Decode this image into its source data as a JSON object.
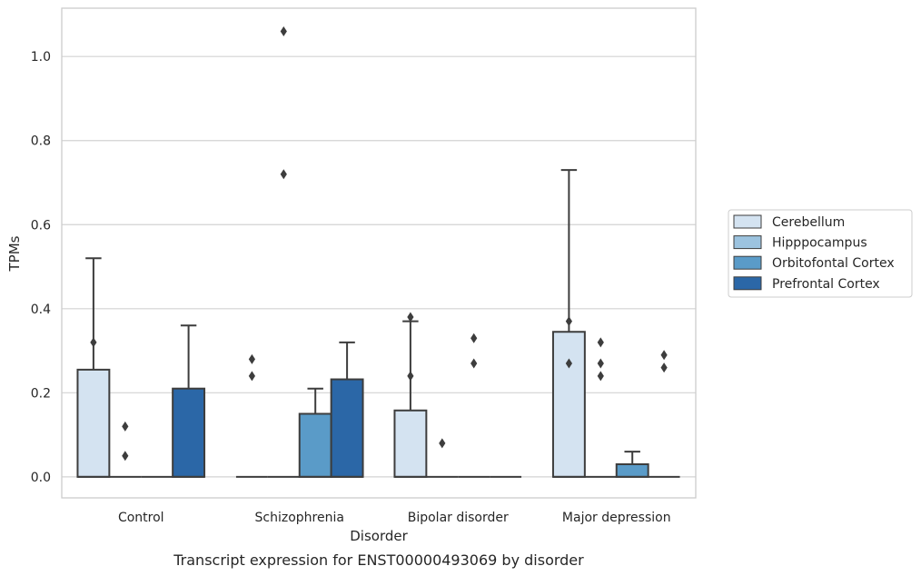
{
  "chart_data": {
    "type": "box",
    "title": "",
    "caption": "Transcript expression for ENST00000493069 by disorder",
    "xlabel": "Disorder",
    "ylabel": "TPMs",
    "ylim": [
      -0.05,
      1.115
    ],
    "yticks": [
      0.0,
      0.2,
      0.4,
      0.6,
      0.8,
      1.0
    ],
    "ytick_labels": [
      "0.0",
      "0.2",
      "0.4",
      "0.6",
      "0.8",
      "1.0"
    ],
    "grid": "horizontal",
    "legend_position": "right",
    "categories": [
      "Control",
      "Schizophrenia",
      "Bipolar disorder",
      "Major depression"
    ],
    "series": [
      {
        "name": "Cerebellum",
        "color": "#d4e3f1",
        "boxes": [
          {
            "q1": 0.0,
            "median": 0.0,
            "q3": 0.255,
            "whisker_low": 0.0,
            "whisker_high": 0.52,
            "outliers": [
              0.32
            ]
          },
          {
            "q1": 0.0,
            "median": 0.0,
            "q3": 0.0,
            "whisker_low": 0.0,
            "whisker_high": 0.0,
            "outliers": [
              0.28,
              0.24
            ]
          },
          {
            "q1": 0.0,
            "median": 0.0,
            "q3": 0.158,
            "whisker_low": 0.0,
            "whisker_high": 0.37,
            "outliers": [
              0.38,
              0.24
            ]
          },
          {
            "q1": 0.0,
            "median": 0.0,
            "q3": 0.345,
            "whisker_low": 0.0,
            "whisker_high": 0.73,
            "outliers": [
              0.37,
              0.27
            ]
          }
        ]
      },
      {
        "name": "Hipppocampus",
        "color": "#9cc3df",
        "boxes": [
          {
            "q1": 0.0,
            "median": 0.0,
            "q3": 0.0,
            "whisker_low": 0.0,
            "whisker_high": 0.0,
            "outliers": [
              0.12,
              0.05
            ]
          },
          {
            "q1": 0.0,
            "median": 0.0,
            "q3": 0.0,
            "whisker_low": 0.0,
            "whisker_high": 0.0,
            "outliers": [
              1.06,
              0.72
            ]
          },
          {
            "q1": 0.0,
            "median": 0.0,
            "q3": 0.0,
            "whisker_low": 0.0,
            "whisker_high": 0.0,
            "outliers": [
              0.08
            ]
          },
          {
            "q1": 0.0,
            "median": 0.0,
            "q3": 0.0,
            "whisker_low": 0.0,
            "whisker_high": 0.0,
            "outliers": [
              0.32,
              0.27,
              0.24
            ]
          }
        ]
      },
      {
        "name": "Orbitofontal Cortex",
        "color": "#5a9bc8",
        "boxes": [
          {
            "q1": 0.0,
            "median": 0.0,
            "q3": 0.0,
            "whisker_low": 0.0,
            "whisker_high": 0.0,
            "outliers": []
          },
          {
            "q1": 0.0,
            "median": 0.0,
            "q3": 0.15,
            "whisker_low": 0.0,
            "whisker_high": 0.21,
            "outliers": []
          },
          {
            "q1": 0.0,
            "median": 0.0,
            "q3": 0.0,
            "whisker_low": 0.0,
            "whisker_high": 0.0,
            "outliers": [
              0.33,
              0.27
            ]
          },
          {
            "q1": 0.0,
            "median": 0.0,
            "q3": 0.03,
            "whisker_low": 0.0,
            "whisker_high": 0.06,
            "outliers": []
          }
        ]
      },
      {
        "name": "Prefrontal Cortex",
        "color": "#2b67a7",
        "boxes": [
          {
            "q1": 0.0,
            "median": 0.0,
            "q3": 0.21,
            "whisker_low": 0.0,
            "whisker_high": 0.36,
            "outliers": []
          },
          {
            "q1": 0.0,
            "median": 0.0,
            "q3": 0.232,
            "whisker_low": 0.0,
            "whisker_high": 0.32,
            "outliers": []
          },
          {
            "q1": 0.0,
            "median": 0.0,
            "q3": 0.0,
            "whisker_low": 0.0,
            "whisker_high": 0.0,
            "outliers": []
          },
          {
            "q1": 0.0,
            "median": 0.0,
            "q3": 0.0,
            "whisker_low": 0.0,
            "whisker_high": 0.0,
            "outliers": [
              0.29,
              0.26
            ]
          }
        ]
      }
    ]
  }
}
